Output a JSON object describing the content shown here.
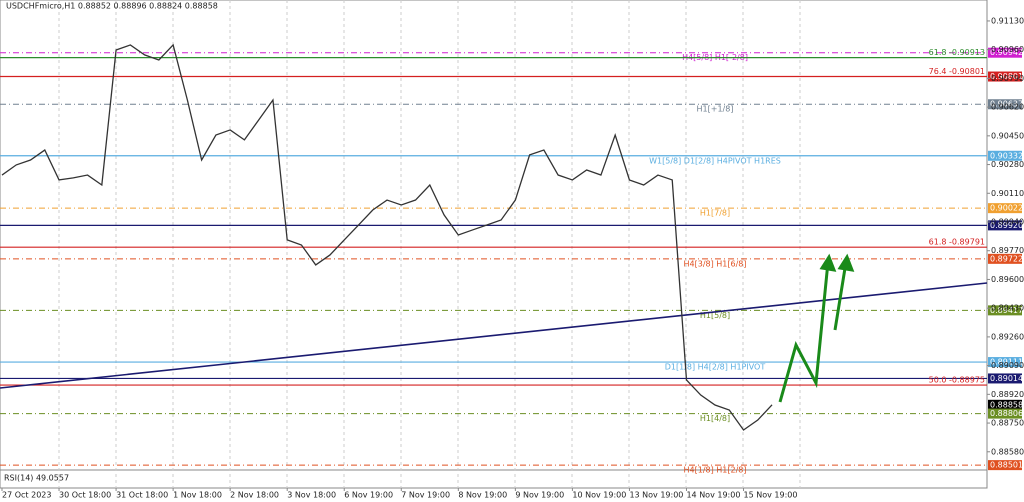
{
  "chart_data": {
    "type": "line",
    "title": "USDCHFmicro,H1 0.88852 0.88896 0.88824 0.88858",
    "indicator": "RSI(14) 49.0557",
    "color": "#333333",
    "categories": [
      "27 Oct 2023",
      null,
      null,
      null,
      "30 Oct 18:00",
      null,
      null,
      null,
      "31 Oct 18:00",
      null,
      null,
      null,
      "1 Nov 18:00",
      null,
      null,
      null,
      "2 Nov 18:00",
      null,
      null,
      null,
      "3 Nov 18:00",
      null,
      null,
      null,
      "6 Nov 19:00",
      null,
      null,
      null,
      "7 Nov 19:00",
      null,
      null,
      null,
      "8 Nov 19:00",
      null,
      null,
      null,
      "9 Nov 19:00",
      null,
      null,
      null,
      "10 Nov 19:00",
      null,
      null,
      null,
      "13 Nov 19:00",
      null,
      null,
      null,
      "14 Nov 19:00",
      null,
      null,
      null,
      "15 Nov 19:00",
      null,
      null
    ],
    "values": [
      0.90218,
      0.90278,
      0.90307,
      0.90366,
      0.90189,
      0.90201,
      0.90218,
      0.90159,
      0.90958,
      0.90988,
      0.90929,
      0.90899,
      0.90988,
      0.90662,
      0.90307,
      0.90455,
      0.90485,
      0.90426,
      0.90544,
      0.90662,
      0.89834,
      0.89804,
      0.89686,
      0.89745,
      0.89834,
      0.89922,
      0.90011,
      0.9007,
      0.90041,
      0.9007,
      0.90159,
      0.89982,
      0.89863,
      0.89893,
      0.89922,
      0.89952,
      0.9007,
      0.90337,
      0.90366,
      0.90218,
      0.90189,
      0.90248,
      0.90218,
      0.90455,
      0.90189,
      0.90159,
      0.90218,
      0.90189,
      0.89005,
      0.88916,
      0.88857,
      0.88827,
      0.88709,
      0.88768,
      0.88858
    ],
    "ylim": [
      0.88484,
      0.91254
    ],
    "yticks": [
      {
        "value": 0.9113,
        "label": "0.91130"
      },
      {
        "value": 0.9096,
        "label": "0.90960"
      },
      {
        "value": 0.9079,
        "label": "0.90790"
      },
      {
        "value": 0.9062,
        "label": "0.90620"
      },
      {
        "value": 0.9045,
        "label": "0.90450"
      },
      {
        "value": 0.9028,
        "label": "0.90280"
      },
      {
        "value": 0.9011,
        "label": "0.90110"
      },
      {
        "value": 0.8994,
        "label": "0.89940"
      },
      {
        "value": 0.8977,
        "label": "0.89770"
      },
      {
        "value": 0.896,
        "label": "0.89600"
      },
      {
        "value": 0.8943,
        "label": "0.89430"
      },
      {
        "value": 0.8926,
        "label": "0.89260"
      },
      {
        "value": 0.8909,
        "label": "0.89090"
      },
      {
        "value": 0.8892,
        "label": "0.88920"
      },
      {
        "value": 0.8875,
        "label": "0.88750"
      },
      {
        "value": 0.8858,
        "label": "0.88580"
      }
    ],
    "levels": [
      {
        "value": 0.90942,
        "color": "#d020d0",
        "style": "dashdot",
        "name": "H4[5/8] H1[-2/8]",
        "tag": "0.90942"
      },
      {
        "value": 0.90913,
        "color": "#2e8b2e",
        "style": "solid",
        "fib": "61.8 -0.90913"
      },
      {
        "value": 0.90801,
        "color": "#d42020",
        "style": "solid",
        "fib": "76.4 -0.90801",
        "tag": "0.90801"
      },
      {
        "value": 0.90637,
        "color": "#708090",
        "style": "dashdot",
        "name": "H1[+1/8]",
        "tag": "0.90637"
      },
      {
        "value": 0.90332,
        "color": "#5aaee0",
        "style": "solid",
        "name": "W1[5/8] D1[2/8] H4PIVOT H1RES",
        "tag": "0.90332"
      },
      {
        "value": 0.90022,
        "color": "#f0a030",
        "style": "dashdot",
        "name": "H1[7/8]",
        "tag": "0.90022"
      },
      {
        "value": 0.8992,
        "color": "#1a1a70",
        "style": "solid",
        "tag": "0.89920"
      },
      {
        "value": 0.89791,
        "color": "#d42020",
        "style": "solid",
        "fib": "61.8 -0.89791"
      },
      {
        "value": 0.89722,
        "color": "#e05020",
        "style": "dashdot",
        "name": "H4[3/8] H1[6/8]",
        "tag": "0.89722"
      },
      {
        "value": 0.89417,
        "color": "#6b8e23",
        "style": "dashdot",
        "name": "H1[5/8]",
        "tag": "0.89417"
      },
      {
        "value": 0.89111,
        "color": "#5aaee0",
        "style": "solid",
        "name": "D1[1/8] H4[2/8] H1PIVOT",
        "tag": "0.89111"
      },
      {
        "value": 0.89014,
        "color": "#1a1a70",
        "style": "solid",
        "tag": "0.89014"
      },
      {
        "value": 0.88975,
        "color": "#d42020",
        "style": "solid",
        "fib": "50.0 -0.88975"
      },
      {
        "value": 0.88858,
        "color": "#000000",
        "style": "none",
        "tag": "0.88858"
      },
      {
        "value": 0.88806,
        "color": "#6b8e23",
        "style": "dashdot",
        "name": "H1[4/8]",
        "tag": "0.88806"
      },
      {
        "value": 0.88501,
        "color": "#e05020",
        "style": "dashdot",
        "name": "H4[1/8] H1[2/8]",
        "tag": "0.88501"
      }
    ]
  }
}
